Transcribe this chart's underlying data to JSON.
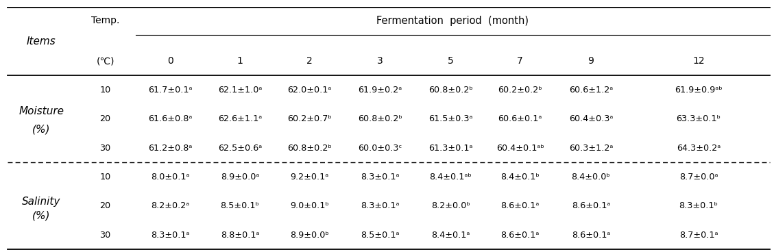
{
  "col_headers": [
    "0",
    "1",
    "2",
    "3",
    "5",
    "7",
    "9",
    "12"
  ],
  "sections": [
    {
      "label_line1": "Moisture",
      "label_line2": "(%)",
      "rows": [
        {
          "temp": "10",
          "values": [
            "61.7±0.1ᵃ",
            "62.1±1.0ᵃ",
            "62.0±0.1ᵃ",
            "61.9±0.2ᵃ",
            "60.8±0.2ᵇ",
            "60.2±0.2ᵇ",
            "60.6±1.2ᵃ",
            "61.9±0.9ᵃᵇ"
          ]
        },
        {
          "temp": "20",
          "values": [
            "61.6±0.8ᵃ",
            "62.6±1.1ᵃ",
            "60.2±0.7ᵇ",
            "60.8±0.2ᵇ",
            "61.5±0.3ᵃ",
            "60.6±0.1ᵃ",
            "60.4±0.3ᵃ",
            "63.3±0.1ᵇ"
          ]
        },
        {
          "temp": "30",
          "values": [
            "61.2±0.8ᵃ",
            "62.5±0.6ᵃ",
            "60.8±0.2ᵇ",
            "60.0±0.3ᶜ",
            "61.3±0.1ᵃ",
            "60.4±0.1ᵃᵇ",
            "60.3±1.2ᵃ",
            "64.3±0.2ᵃ"
          ]
        }
      ]
    },
    {
      "label_line1": "Salinity",
      "label_line2": "(%)",
      "rows": [
        {
          "temp": "10",
          "values": [
            "8.0±0.1ᵃ",
            "8.9±0.0ᵃ",
            "9.2±0.1ᵃ",
            "8.3±0.1ᵃ",
            "8.4±0.1ᵃᵇ",
            "8.4±0.1ᵇ",
            "8.4±0.0ᵇ",
            "8.7±0.0ᵃ"
          ]
        },
        {
          "temp": "20",
          "values": [
            "8.2±0.2ᵃ",
            "8.5±0.1ᵇ",
            "9.0±0.1ᵇ",
            "8.3±0.1ᵃ",
            "8.2±0.0ᵇ",
            "8.6±0.1ᵃ",
            "8.6±0.1ᵃ",
            "8.3±0.1ᵇ"
          ]
        },
        {
          "temp": "30",
          "values": [
            "8.3±0.1ᵃ",
            "8.8±0.1ᵃ",
            "8.9±0.0ᵇ",
            "8.5±0.1ᵃ",
            "8.4±0.1ᵃ",
            "8.6±0.1ᵃ",
            "8.6±0.1ᵃ",
            "8.7±0.1ᵃ"
          ]
        }
      ]
    }
  ],
  "bg_color": "#ffffff",
  "text_color": "#000000",
  "fontsize_header": 10.0,
  "fontsize_data": 9.2,
  "fontsize_label": 11.0,
  "fontsize_fp": 10.5
}
